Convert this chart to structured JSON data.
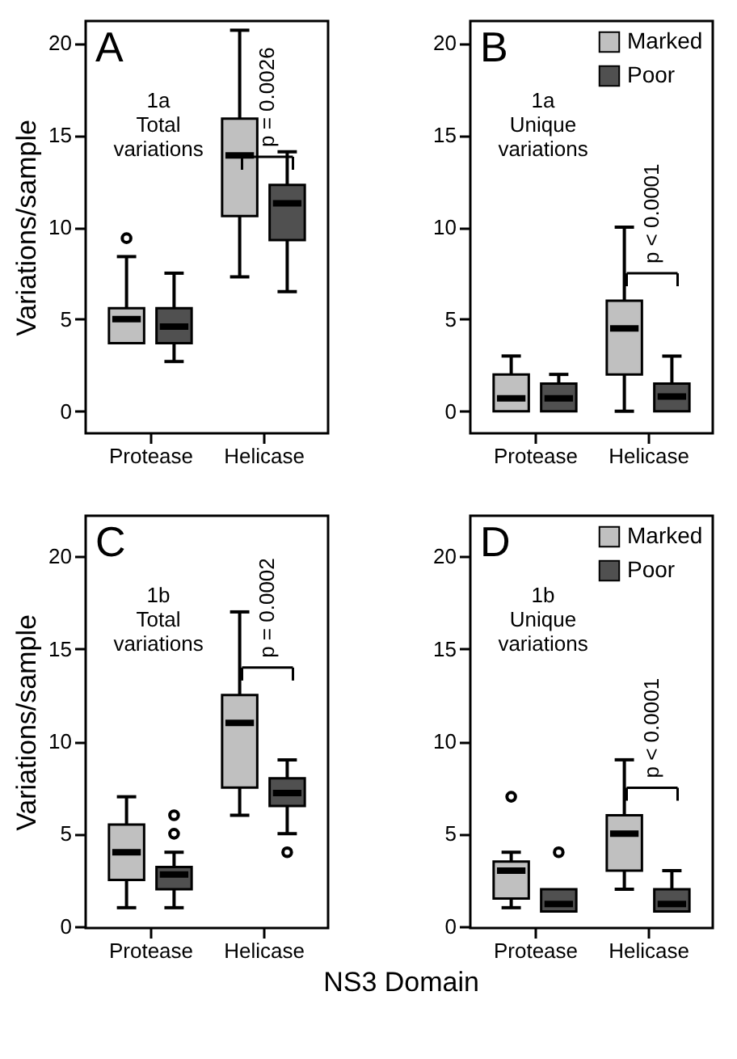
{
  "chart_data": [
    {
      "type": "box",
      "categories": [
        "Protease",
        "Helicase"
      ],
      "ylabel": "Variations/sample",
      "ylim": [
        -1.2,
        21.2
      ],
      "yticks": [
        0,
        5,
        10,
        15,
        20
      ],
      "legend": false,
      "annotations": [
        "A",
        "1a\nTotal\nvariations",
        "p = 0.0026"
      ],
      "series": [
        {
          "color": "#c0c0c0",
          "boxes": [
            {
              "low": 3.7,
              "q1": 3.7,
              "median": 5,
              "q3": 5.6,
              "high": 8.4,
              "outliers": [
                9.4
              ]
            },
            {
              "low": 7.3,
              "q1": 10.6,
              "median": 13.9,
              "q3": 15.9,
              "high": 20.7
            }
          ]
        },
        {
          "color": "#505050",
          "boxes": [
            {
              "low": 2.7,
              "q1": 3.7,
              "median": 4.6,
              "q3": 5.6,
              "high": 7.5
            },
            {
              "low": 6.5,
              "q1": 9.3,
              "median": 11.3,
              "q3": 12.3,
              "high": 14.1
            }
          ]
        }
      ]
    },
    {
      "type": "box",
      "categories": [
        "Protease",
        "Helicase"
      ],
      "ylim": [
        -1.2,
        21.2
      ],
      "yticks": [
        0,
        5,
        10,
        15,
        20
      ],
      "legend": "top right",
      "annotations": [
        "B",
        "1a\nUnique\nvariations",
        "p < 0.0001"
      ],
      "series": [
        {
          "name": "Marked",
          "color": "#c0c0c0",
          "boxes": [
            {
              "low": 0,
              "q1": 0,
              "median": 0.7,
              "q3": 2,
              "high": 3
            },
            {
              "low": 0,
              "q1": 2,
              "median": 4.5,
              "q3": 6,
              "high": 10
            }
          ]
        },
        {
          "name": "Poor",
          "color": "#505050",
          "boxes": [
            {
              "low": 0,
              "q1": 0,
              "median": 0.7,
              "q3": 1.5,
              "high": 2
            },
            {
              "low": 0,
              "q1": 0,
              "median": 0.8,
              "q3": 1.5,
              "high": 3
            }
          ]
        }
      ]
    },
    {
      "type": "box",
      "categories": [
        "Protease",
        "Helicase"
      ],
      "xlabel": "NS3 Domain",
      "ylabel": "Variations/sample",
      "ylim": [
        -0.1,
        22.2
      ],
      "yticks": [
        0,
        5,
        10,
        15,
        20
      ],
      "legend": false,
      "annotations": [
        "C",
        "1b\nTotal\nvariations",
        "p = 0.0002"
      ],
      "series": [
        {
          "color": "#c0c0c0",
          "boxes": [
            {
              "low": 1,
              "q1": 2.5,
              "median": 4,
              "q3": 5.5,
              "high": 7
            },
            {
              "low": 6,
              "q1": 7.5,
              "median": 11,
              "q3": 12.5,
              "high": 17
            }
          ]
        },
        {
          "color": "#505050",
          "boxes": [
            {
              "low": 1,
              "q1": 2,
              "median": 2.8,
              "q3": 3.2,
              "high": 4,
              "outliers": [
                5,
                6
              ]
            },
            {
              "low": 5,
              "q1": 6.5,
              "median": 7.2,
              "q3": 8,
              "high": 9,
              "outliers": [
                4
              ]
            }
          ]
        }
      ]
    },
    {
      "type": "box",
      "categories": [
        "Protease",
        "Helicase"
      ],
      "ylim": [
        -0.1,
        22.2
      ],
      "yticks": [
        0,
        5,
        10,
        15,
        20
      ],
      "legend": "top right",
      "annotations": [
        "D",
        "1b\nUnique\nvariations",
        "p < 0.0001"
      ],
      "series": [
        {
          "name": "Marked",
          "color": "#c0c0c0",
          "boxes": [
            {
              "low": 1,
              "q1": 1.5,
              "median": 3,
              "q3": 3.5,
              "high": 4,
              "outliers": [
                7
              ]
            },
            {
              "low": 2,
              "q1": 3,
              "median": 5,
              "q3": 6,
              "high": 9
            }
          ]
        },
        {
          "name": "Poor",
          "color": "#505050",
          "boxes": [
            {
              "low": 0.8,
              "q1": 0.8,
              "median": 1.2,
              "q3": 2,
              "high": 2,
              "outliers": [
                4
              ]
            },
            {
              "low": 0.8,
              "q1": 0.8,
              "median": 1.2,
              "q3": 2,
              "high": 3
            }
          ]
        }
      ]
    }
  ]
}
